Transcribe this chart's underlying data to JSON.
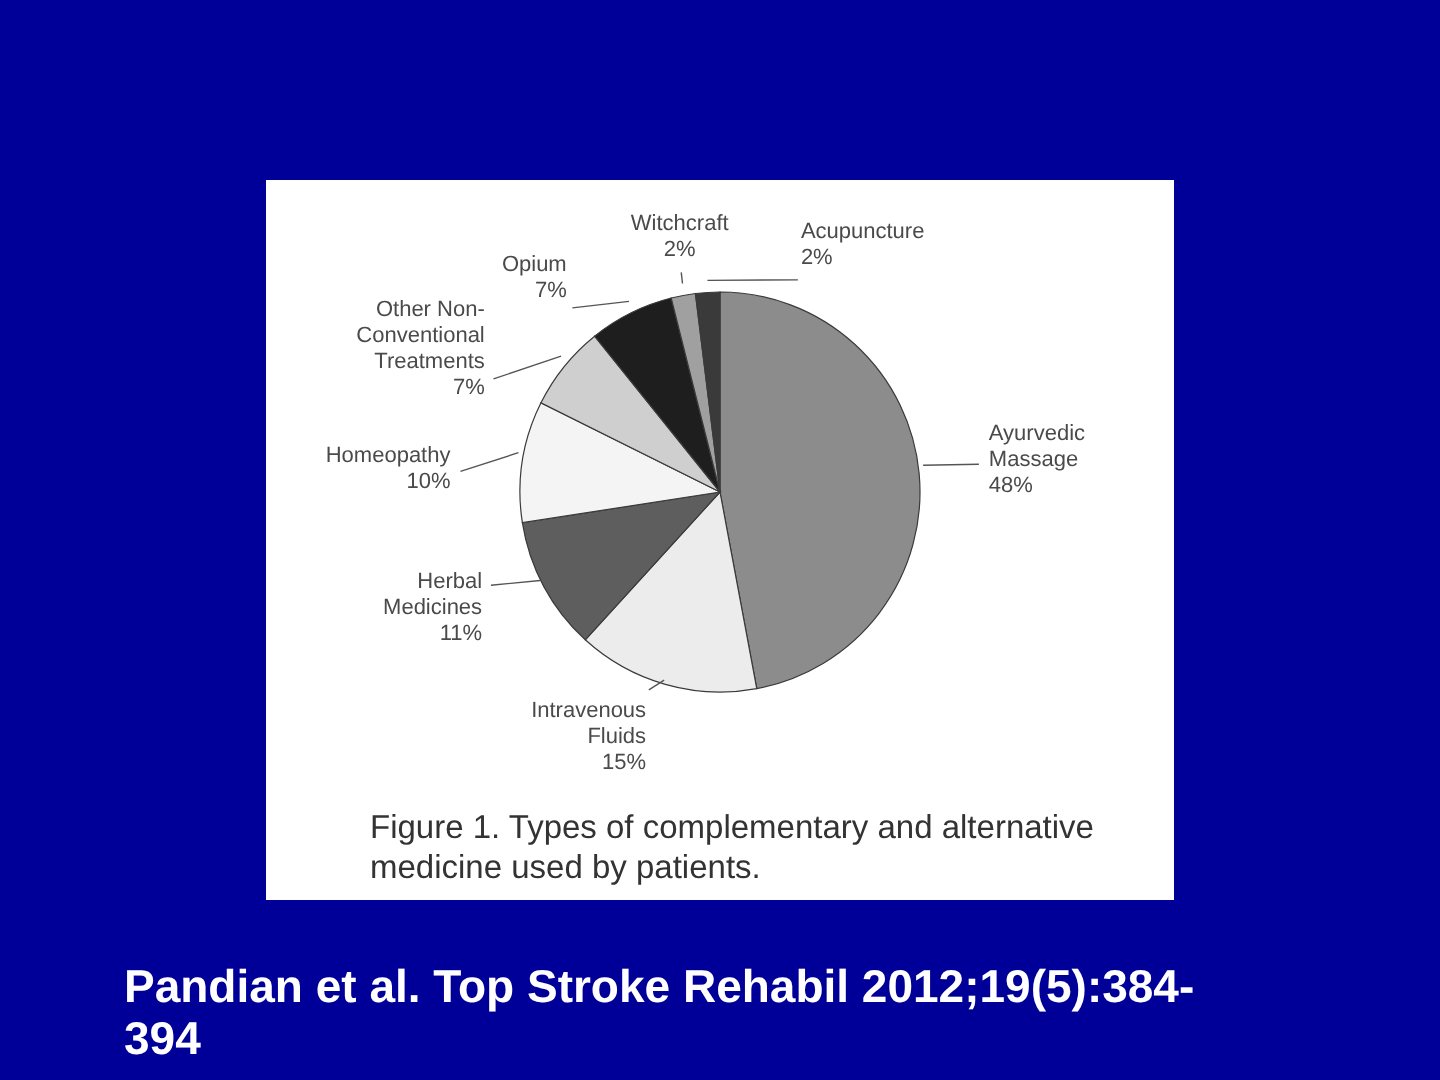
{
  "chart_data": {
    "type": "pie",
    "title": "Figure 1. Types of complementary and alternative medicine used by patients.",
    "categories": [
      "Ayurvedic Massage",
      "Intravenous Fluids",
      "Herbal Medicines",
      "Homeopathy",
      "Other Non-Conventional Treatments",
      "Opium",
      "Witchcraft",
      "Acupuncture"
    ],
    "values": [
      48,
      15,
      11,
      10,
      7,
      7,
      2,
      2
    ],
    "value_labels": [
      "48%",
      "15%",
      "11%",
      "10%",
      "7%",
      "7%",
      "2%",
      "2%"
    ],
    "colors": [
      "#8c8c8c",
      "#ececec",
      "#5e5e5e",
      "#f4f4f4",
      "#cfcfcf",
      "#1e1e1e",
      "#a0a0a0",
      "#3a3a3a"
    ],
    "annotations": [
      "Pandian et al. Top Stroke Rehabil 2012;19(5):384-394"
    ]
  }
}
